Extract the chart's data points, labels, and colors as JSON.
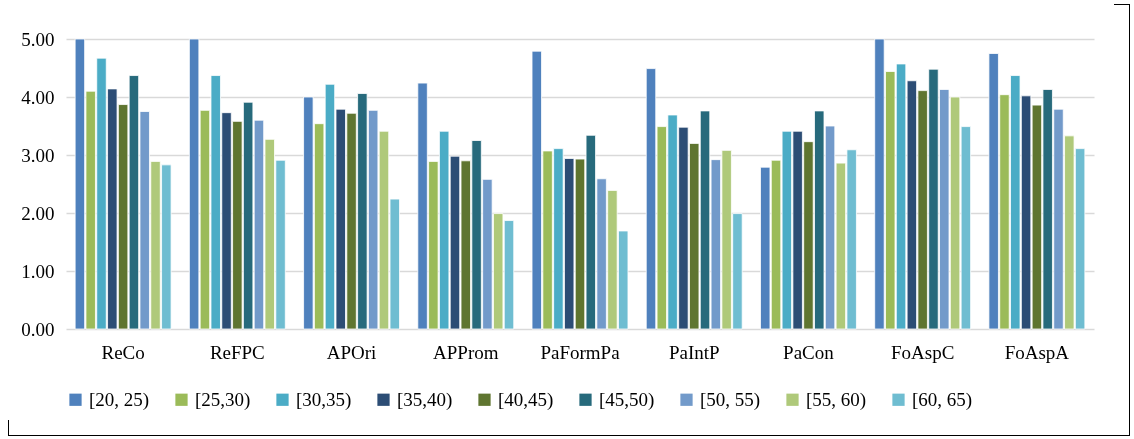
{
  "chart_data": {
    "type": "bar",
    "categories": [
      "ReCo",
      "ReFPC",
      "APOri",
      "APProm",
      "PaFormPa",
      "PaIntP",
      "PaCon",
      "FoAspC",
      "FoAspA"
    ],
    "series": [
      {
        "name": "[20, 25)",
        "color": "#4f81bd",
        "values": [
          5.0,
          5.0,
          4.0,
          4.24,
          4.79,
          4.49,
          2.79,
          5.0,
          4.75
        ]
      },
      {
        "name": "[25,30)",
        "color": "#9bbb59",
        "values": [
          4.1,
          3.77,
          3.54,
          2.89,
          3.07,
          3.49,
          2.91,
          4.44,
          4.04
        ]
      },
      {
        "name": "[30,35)",
        "color": "#4bacc6",
        "values": [
          4.67,
          4.37,
          4.22,
          3.41,
          3.11,
          3.69,
          3.41,
          4.57,
          4.37
        ]
      },
      {
        "name": "[35,40)",
        "color": "#2c4d75",
        "values": [
          4.14,
          3.73,
          3.79,
          2.98,
          2.94,
          3.48,
          3.41,
          4.28,
          4.02
        ]
      },
      {
        "name": "[40,45)",
        "color": "#5f7530",
        "values": [
          3.87,
          3.58,
          3.72,
          2.9,
          2.93,
          3.2,
          3.23,
          4.11,
          3.86
        ]
      },
      {
        "name": "[45,50)",
        "color": "#276a7c",
        "values": [
          4.37,
          3.91,
          4.06,
          3.25,
          3.34,
          3.76,
          3.76,
          4.48,
          4.13
        ]
      },
      {
        "name": "[50, 55)",
        "color": "#729aca",
        "values": [
          3.75,
          3.6,
          3.77,
          2.58,
          2.59,
          2.92,
          3.5,
          4.13,
          3.79
        ]
      },
      {
        "name": "[55, 60)",
        "color": "#afc97a",
        "values": [
          2.89,
          3.27,
          3.41,
          1.99,
          2.39,
          3.08,
          2.86,
          4.0,
          3.33
        ]
      },
      {
        "name": "[60, 65)",
        "color": "#6fbdd1",
        "values": [
          2.83,
          2.91,
          2.24,
          1.87,
          1.69,
          1.99,
          3.09,
          3.49,
          3.11
        ]
      }
    ],
    "ylim": [
      0,
      5
    ],
    "yticks": [
      {
        "value": 0,
        "label": "0.00"
      },
      {
        "value": 1,
        "label": "1.00"
      },
      {
        "value": 2,
        "label": "2.00"
      },
      {
        "value": 3,
        "label": "3.00"
      },
      {
        "value": 4,
        "label": "4.00"
      },
      {
        "value": 5,
        "label": "5.00"
      }
    ],
    "grid": "y",
    "legend": "bottom"
  }
}
